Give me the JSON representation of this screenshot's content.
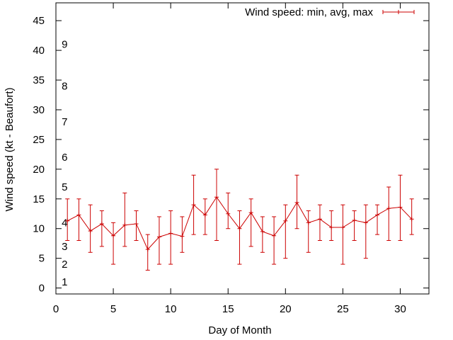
{
  "chart_data": {
    "type": "line",
    "title": "",
    "xlabel": "Day of Month",
    "ylabel": "Wind speed (kt - Beaufort)",
    "xlim": [
      0,
      32.5
    ],
    "ylim": [
      -1,
      48
    ],
    "x_ticks": [
      0,
      5,
      10,
      15,
      20,
      25,
      30
    ],
    "y_ticks": [
      0,
      5,
      10,
      15,
      20,
      25,
      30,
      35,
      40,
      45
    ],
    "grid": false,
    "legend_position": "top-right",
    "beaufort_labels": [
      {
        "label": "1",
        "y": 1
      },
      {
        "label": "2",
        "y": 4
      },
      {
        "label": "3",
        "y": 7
      },
      {
        "label": "4",
        "y": 11
      },
      {
        "label": "5",
        "y": 17
      },
      {
        "label": "6",
        "y": 22
      },
      {
        "label": "7",
        "y": 28
      },
      {
        "label": "8",
        "y": 34
      },
      {
        "label": "9",
        "y": 41
      }
    ],
    "series": [
      {
        "name": "Wind speed: min, avg, max",
        "color": "#cc0000",
        "points": [
          {
            "x": 1,
            "min": 8,
            "avg": 11.3,
            "max": 15
          },
          {
            "x": 2,
            "min": 8,
            "avg": 12.3,
            "max": 15
          },
          {
            "x": 3,
            "min": 6,
            "avg": 9.6,
            "max": 14
          },
          {
            "x": 4,
            "min": 7,
            "avg": 10.8,
            "max": 13
          },
          {
            "x": 5,
            "min": 4,
            "avg": 8.8,
            "max": 11
          },
          {
            "x": 6,
            "min": 7,
            "avg": 10.6,
            "max": 16
          },
          {
            "x": 7,
            "min": 8,
            "avg": 10.8,
            "max": 13
          },
          {
            "x": 8,
            "min": 3,
            "avg": 6.5,
            "max": 9
          },
          {
            "x": 9,
            "min": 4,
            "avg": 8.6,
            "max": 12
          },
          {
            "x": 10,
            "min": 4,
            "avg": 9.2,
            "max": 13
          },
          {
            "x": 11,
            "min": 6,
            "avg": 8.7,
            "max": 12
          },
          {
            "x": 12,
            "min": 9,
            "avg": 14,
            "max": 19
          },
          {
            "x": 13,
            "min": 9,
            "avg": 12.3,
            "max": 15
          },
          {
            "x": 14,
            "min": 8,
            "avg": 15.3,
            "max": 20
          },
          {
            "x": 15,
            "min": 10,
            "avg": 12.5,
            "max": 16
          },
          {
            "x": 16,
            "min": 4,
            "avg": 10,
            "max": 13
          },
          {
            "x": 17,
            "min": 7,
            "avg": 12.7,
            "max": 15
          },
          {
            "x": 18,
            "min": 6,
            "avg": 9.5,
            "max": 12
          },
          {
            "x": 19,
            "min": 4,
            "avg": 8.8,
            "max": 12
          },
          {
            "x": 20,
            "min": 5,
            "avg": 11.3,
            "max": 14
          },
          {
            "x": 21,
            "min": 10,
            "avg": 14.4,
            "max": 19
          },
          {
            "x": 22,
            "min": 6,
            "avg": 11,
            "max": 13
          },
          {
            "x": 23,
            "min": 8,
            "avg": 11.6,
            "max": 14
          },
          {
            "x": 24,
            "min": 8,
            "avg": 10.2,
            "max": 13
          },
          {
            "x": 25,
            "min": 4,
            "avg": 10.2,
            "max": 14
          },
          {
            "x": 26,
            "min": 8,
            "avg": 11.4,
            "max": 13
          },
          {
            "x": 27,
            "min": 5,
            "avg": 11,
            "max": 14
          },
          {
            "x": 28,
            "min": 9,
            "avg": 12.3,
            "max": 14
          },
          {
            "x": 29,
            "min": 8,
            "avg": 13.4,
            "max": 17
          },
          {
            "x": 30,
            "min": 8,
            "avg": 13.6,
            "max": 19
          },
          {
            "x": 31,
            "min": 9,
            "avg": 11.6,
            "max": 15
          }
        ]
      }
    ]
  }
}
